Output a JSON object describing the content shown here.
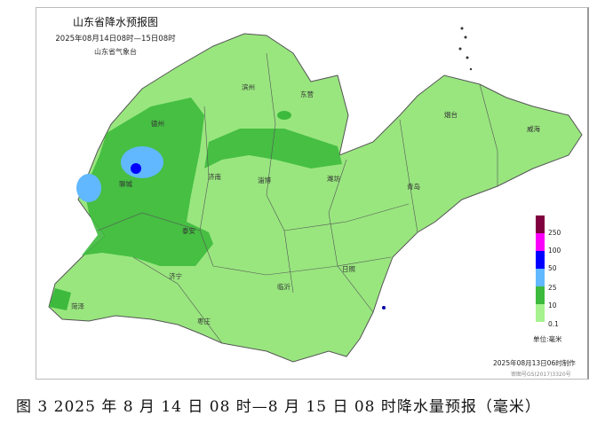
{
  "map": {
    "title": "山东省降水预报图",
    "subtitle": "2025年08月14日08时—15日08时",
    "agency": "山东省气象台",
    "cities": [
      "德州",
      "滨州",
      "东营",
      "烟台",
      "威海",
      "聊城",
      "济南",
      "淄博",
      "潍坊",
      "青岛",
      "泰安",
      "济宁",
      "菏泽",
      "临沂",
      "日照",
      "枣庄"
    ],
    "legend": {
      "unit": "单位:毫米",
      "thresholds": [
        "0.1",
        "10",
        "25",
        "50",
        "100",
        "250"
      ],
      "colors": [
        "#a6f28f",
        "#3dba3d",
        "#61b8ff",
        "#0000ff",
        "#fa00fa",
        "#800040"
      ]
    },
    "issued": "2025年08月13日06时制作",
    "approval": "审图号GS(2017)3320号"
  },
  "caption": "图 3 2025 年 8 月 14 日 08 时—8 月 15 日 08 时降水量预报（毫米）"
}
